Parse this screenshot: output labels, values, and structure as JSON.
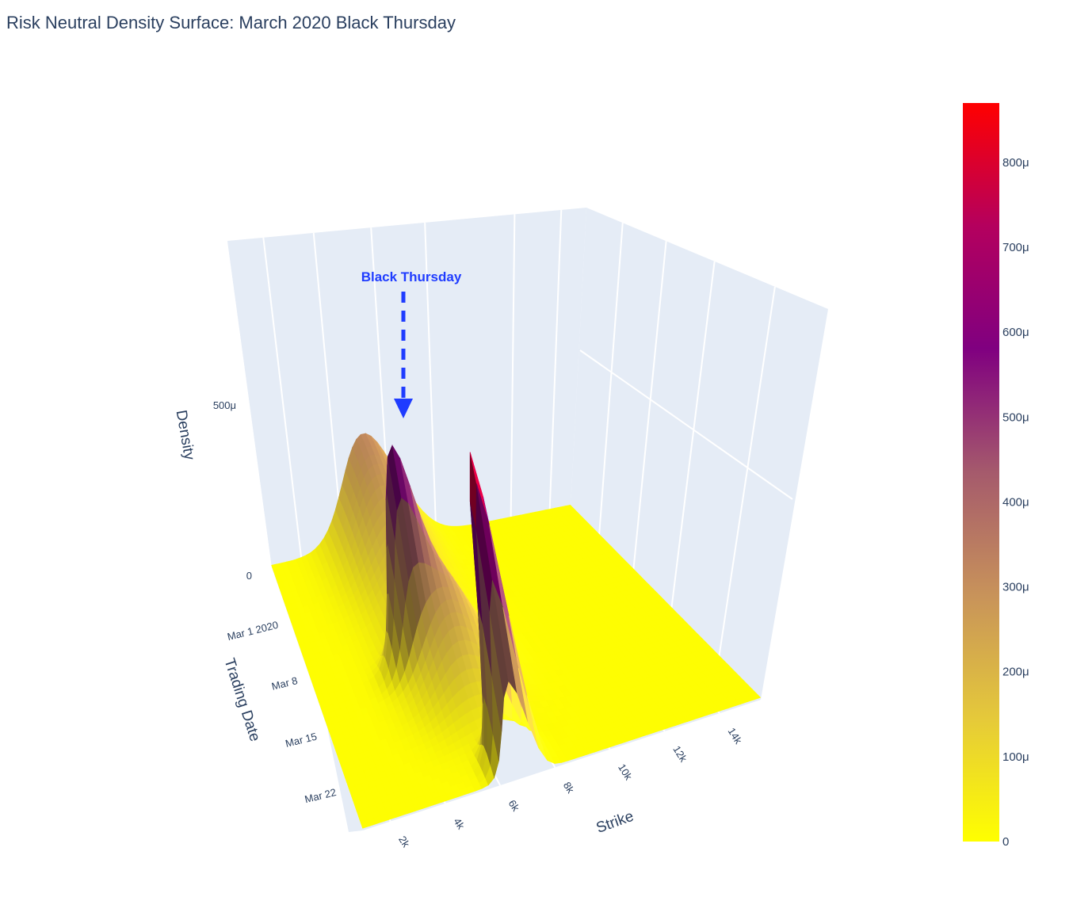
{
  "chart_data": {
    "type": "surface",
    "title": "Risk Neutral Density Surface: March 2020 Black Thursday",
    "axes": {
      "x": {
        "label": "Strike",
        "range": [
          1000,
          15500
        ],
        "ticks": [
          {
            "value": 2000,
            "label": "2k"
          },
          {
            "value": 4000,
            "label": "4k"
          },
          {
            "value": 6000,
            "label": "6k"
          },
          {
            "value": 8000,
            "label": "8k"
          },
          {
            "value": 10000,
            "label": "10k"
          },
          {
            "value": 12000,
            "label": "12k"
          },
          {
            "value": 14000,
            "label": "14k"
          }
        ]
      },
      "y": {
        "label": "Trading Date",
        "range_days": [
          -6,
          27
        ],
        "ticks": [
          {
            "value": "2020-03-01",
            "label": "Mar 1 2020"
          },
          {
            "value": "2020-03-08",
            "label": "Mar 8"
          },
          {
            "value": "2020-03-15",
            "label": "Mar 15"
          },
          {
            "value": "2020-03-22",
            "label": "Mar 22"
          }
        ]
      },
      "z": {
        "label": "Density",
        "range": [
          0,
          0.00087
        ],
        "ticks": [
          {
            "value": 0,
            "label": "0"
          },
          {
            "value": 0.0005,
            "label": "500μ"
          }
        ]
      }
    },
    "colorscale": [
      "#ffff00",
      "#e5c93a",
      "#c8935a",
      "#a55a6c",
      "#800080",
      "#b4005e",
      "#ff0000"
    ],
    "colorbar": {
      "range": [
        0,
        0.00087
      ],
      "ticks": [
        {
          "value": 0,
          "label": "0"
        },
        {
          "value": 0.0001,
          "label": "100μ"
        },
        {
          "value": 0.0002,
          "label": "200μ"
        },
        {
          "value": 0.0003,
          "label": "300μ"
        },
        {
          "value": 0.0004,
          "label": "400μ"
        },
        {
          "value": 0.0005,
          "label": "500μ"
        },
        {
          "value": 0.0006,
          "label": "600μ"
        },
        {
          "value": 0.0007,
          "label": "700μ"
        },
        {
          "value": 0.0008,
          "label": "800μ"
        }
      ]
    },
    "annotation": {
      "text": "Black Thursday",
      "date": "2020-03-12"
    },
    "peaks": [
      {
        "name": "black-thursday-spike",
        "strike": 5200,
        "date": "2020-03-12",
        "density": 0.00049
      },
      {
        "name": "late-feb-ridge",
        "strike": 6200,
        "date": "2020-02-24",
        "density": 0.00031
      },
      {
        "name": "mid-march-ridge",
        "strike": 6400,
        "date": "2020-03-13",
        "density": 0.00027
      },
      {
        "name": "late-march-spike",
        "strike": 6800,
        "date": "2020-03-26",
        "density": 0.00087
      }
    ],
    "grid": true
  }
}
